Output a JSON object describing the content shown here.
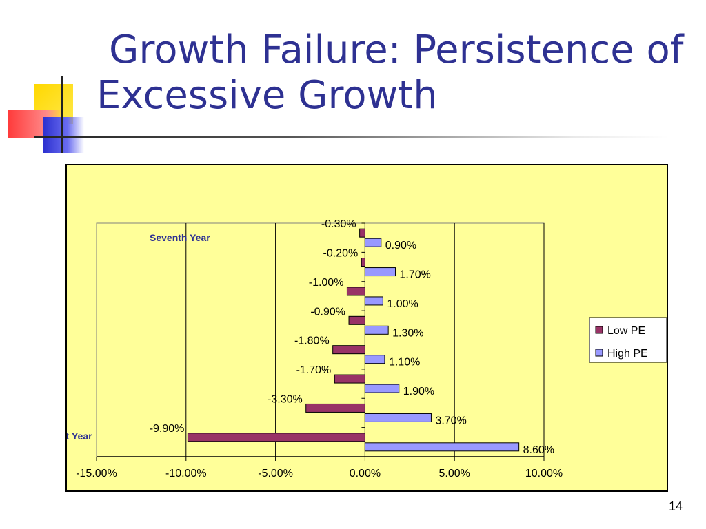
{
  "slide": {
    "title": "Growth Failure: Persistence of Excessive Growth",
    "page_number": "14"
  },
  "chart_data": {
    "type": "bar",
    "orientation": "horizontal",
    "categories": [
      "First Year",
      "",
      "",
      "",
      "",
      "",
      "",
      "Seventh Year"
    ],
    "series": [
      {
        "name": "Low PE",
        "values": [
          -9.9,
          -3.3,
          -1.7,
          -1.8,
          -0.9,
          -1.0,
          -0.2,
          -0.3
        ],
        "labels": [
          "-9.90%",
          "-3.30%",
          "-1.70%",
          "-1.80%",
          "-0.90%",
          "-1.00%",
          "-0.20%",
          "-0.30%"
        ],
        "color": "#993366"
      },
      {
        "name": "High PE",
        "values": [
          8.6,
          3.7,
          1.9,
          1.1,
          1.3,
          1.0,
          1.7,
          0.9
        ],
        "labels": [
          "8.60%",
          "3.70%",
          "1.90%",
          "1.10%",
          "1.30%",
          "1.00%",
          "1.70%",
          "0.90%"
        ],
        "color": "#9999ff"
      }
    ],
    "x_ticks": [
      -15,
      -10,
      -5,
      0,
      5,
      10
    ],
    "x_tick_labels": [
      "-15.00%",
      "-10.00%",
      "-5.00%",
      "0.00%",
      "5.00%",
      "10.00%"
    ],
    "xlim": [
      -15,
      10
    ],
    "grid": "vertical",
    "legend_position": "right",
    "category_label_color": "#2e3192"
  }
}
